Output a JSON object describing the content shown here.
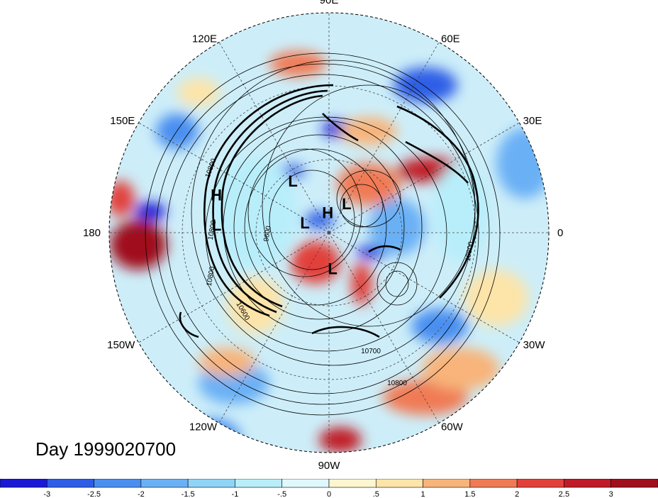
{
  "title": "Day 1999020700",
  "longitude_labels": [
    {
      "text": "90E",
      "angle": 90
    },
    {
      "text": "60E",
      "angle": 60
    },
    {
      "text": "30E",
      "angle": 30
    },
    {
      "text": "0",
      "angle": 0
    },
    {
      "text": "30W",
      "angle": -30
    },
    {
      "text": "60W",
      "angle": -60
    },
    {
      "text": "90W",
      "angle": -90
    },
    {
      "text": "120W",
      "angle": -120
    },
    {
      "text": "150W",
      "angle": -150
    },
    {
      "text": "180",
      "angle": 180
    },
    {
      "text": "150E",
      "angle": 150
    },
    {
      "text": "120E",
      "angle": 120
    }
  ],
  "pressure_centers": [
    {
      "text": "H",
      "kind": "high",
      "lon": 164,
      "lat": 42
    },
    {
      "text": "L",
      "kind": "low",
      "lon": 179,
      "lat": 44
    },
    {
      "text": "L",
      "kind": "low",
      "lon": 128,
      "lat": 66
    },
    {
      "text": "H",
      "kind": "high",
      "lon": 95,
      "lat": 84
    },
    {
      "text": "L",
      "kind": "low",
      "lon": 53,
      "lat": 78
    },
    {
      "text": "L",
      "kind": "low",
      "lon": 170,
      "lat": 80
    },
    {
      "text": "L",
      "kind": "low",
      "lon": -85,
      "lat": 73
    }
  ],
  "contour_labels": [
    "10800",
    "10800",
    "10700",
    "10800",
    "10800",
    "9600",
    "10600",
    "10800"
  ],
  "colorbar": {
    "ticks": [
      "-3",
      "-2.5",
      "-2",
      "-1.5",
      "-1",
      "-.5",
      "0",
      ".5",
      "1",
      "1.5",
      "2",
      "2.5",
      "3"
    ],
    "colors": [
      "#1a1ad6",
      "#2e5ee6",
      "#4a8ff0",
      "#6ab0f5",
      "#8ed4f7",
      "#b8eefa",
      "#e0f8fb",
      "#fdf6d0",
      "#fde4a8",
      "#f8b47a",
      "#f07a55",
      "#e2403a",
      "#c01a28",
      "#a0101c"
    ]
  }
}
